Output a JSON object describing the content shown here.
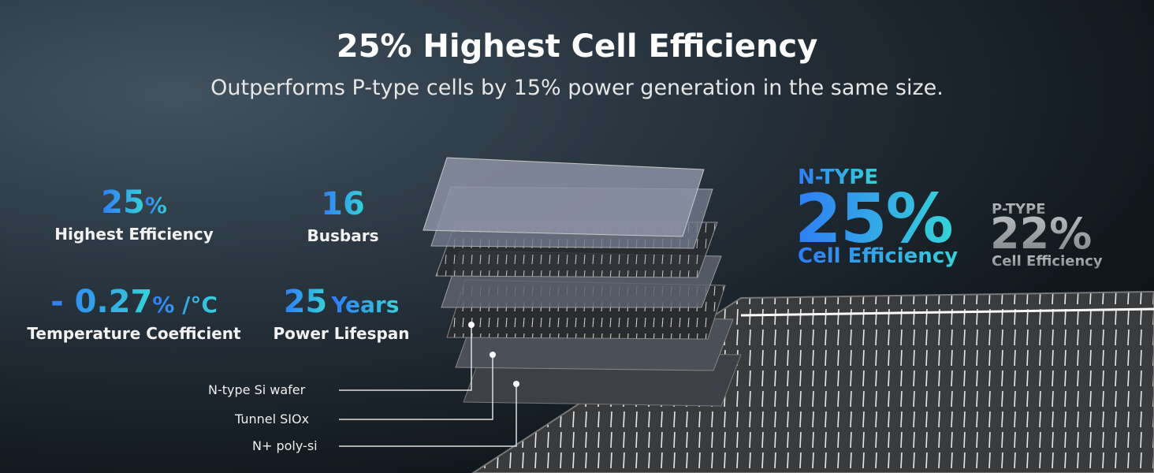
{
  "header": {
    "title": "25% Highest Cell Efficiency",
    "subtitle": "Outperforms P-type cells by 15% power generation in the same size."
  },
  "stats": [
    {
      "value": "25",
      "unit": "%",
      "label": "Highest Efficiency"
    },
    {
      "value": "16",
      "label": "Busbars"
    },
    {
      "value": "- 0.27",
      "unit": "% /°C",
      "label": "Temperature Coefficient"
    },
    {
      "value": "25",
      "unit": "Years",
      "label": "Power Lifespan"
    }
  ],
  "layers": {
    "labels": [
      "N-type Si wafer",
      "Tunnel SIOx",
      "N+ poly-si"
    ]
  },
  "comparison": [
    {
      "type": "N-TYPE",
      "value": "25%",
      "label": "Cell Efficiency"
    },
    {
      "type": "P-TYPE",
      "value": "22%",
      "label": "Cell Efficiency"
    }
  ]
}
